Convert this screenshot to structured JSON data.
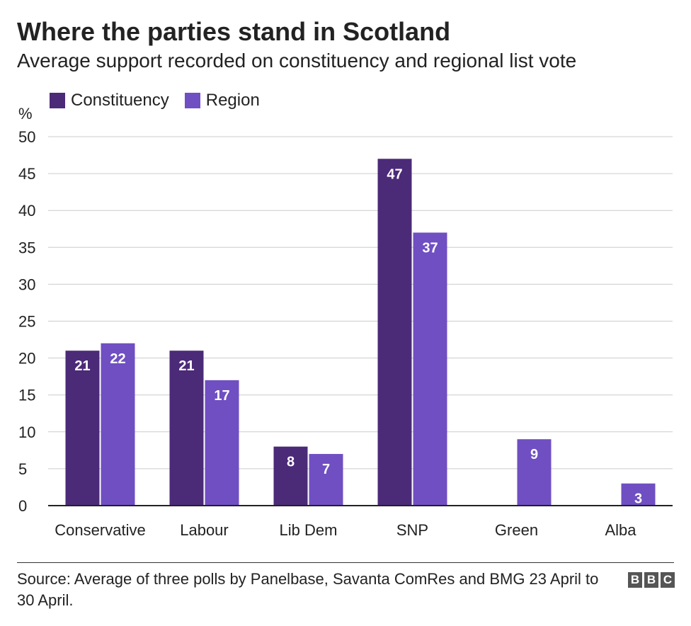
{
  "header": {
    "title": "Where the parties stand in Scotland",
    "subtitle": "Average support recorded on constituency and regional list vote"
  },
  "footer": {
    "source": "Source: Average of three polls by Panelbase, Savanta ComRes and BMG 23 April to 30 April.",
    "logo": [
      "B",
      "B",
      "C"
    ]
  },
  "chart_data": {
    "type": "bar",
    "title": "Where the parties stand in Scotland",
    "subtitle": "Average support recorded on constituency and regional list vote",
    "ylabel": "%",
    "xlabel": "",
    "ylim": [
      0,
      50
    ],
    "yticks": [
      0,
      5,
      10,
      15,
      20,
      25,
      30,
      35,
      40,
      45,
      50
    ],
    "grid": true,
    "legend": "top-left",
    "categories": [
      "Conservative",
      "Labour",
      "Lib Dem",
      "SNP",
      "Green",
      "Alba"
    ],
    "series": [
      {
        "name": "Constituency",
        "color": "#4b2a78",
        "values": [
          21,
          21,
          8,
          47,
          null,
          null
        ]
      },
      {
        "name": "Region",
        "color": "#6f4fc2",
        "values": [
          22,
          17,
          7,
          37,
          9,
          3
        ]
      }
    ]
  }
}
